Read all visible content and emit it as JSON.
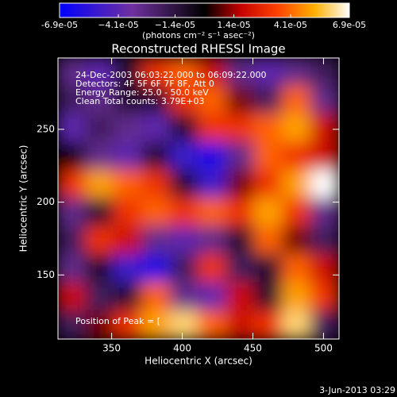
{
  "chart_data": {
    "type": "heatmap",
    "title": "Reconstructed RHESSI Image",
    "xlabel": "Heliocentric X (arcsec)",
    "ylabel": "Heliocentric Y (arcsec)",
    "xlim": [
      312,
      511
    ],
    "ylim": [
      106,
      299
    ],
    "xticks": [
      350,
      400,
      450,
      500
    ],
    "yticks": [
      150,
      200,
      250
    ],
    "colorbar_label": "(photons cm⁻² s⁻¹ asec⁻²)",
    "clim": [
      -6.9e-05,
      6.9e-05
    ],
    "cticks": [
      {
        "value": -6.9e-05,
        "label": "-6.9e-05"
      },
      {
        "value": -4.1e-05,
        "label": "−4.1e-05"
      },
      {
        "value": -1.4e-05,
        "label": "−1.4e-05"
      },
      {
        "value": 1.4e-05,
        "label": "1.4e-05"
      },
      {
        "value": 4.1e-05,
        "label": "4.1e-05"
      },
      {
        "value": 6.9e-05,
        "label": "6.9e-05"
      }
    ],
    "annotations": [
      "24-Dec-2003 06:03:22.000 to 06:09:22.000",
      "Detectors: 4F 5F 6F 7F 8F, Att 0",
      "Energy Range: 25.0 - 50.0 keV",
      "Clean     Total counts: 3.79E+03"
    ],
    "peak_label": "Position of Peak = [",
    "timestamp": "3-Jun-2013 03:29",
    "z": [
      [
        -3e-05,
        -4e-05,
        -1e-05,
        3e-05,
        4e-05,
        2e-05,
        -3e-05,
        -4e-05,
        -3e-05,
        -2e-05
      ],
      [
        -2e-05,
        -3e-05,
        -1e-05,
        -1e-05,
        3e-05,
        4e-05,
        1e-05,
        -2e-05,
        4e-05,
        -3e-05
      ],
      [
        -4e-05,
        -2e-05,
        -3e-05,
        -4e-05,
        -1e-05,
        3e-05,
        3e-05,
        4e-05,
        5e-05,
        2e-05
      ],
      [
        0,
        -3e-05,
        -4e-05,
        -1e-05,
        -5e-05,
        -6e-05,
        -3e-05,
        4e-05,
        3e-05,
        2e-05
      ],
      [
        3e-05,
        5e-05,
        4e-05,
        3e-05,
        -1e-05,
        -5e-05,
        1e-05,
        3e-05,
        5e-05,
        7e-05
      ],
      [
        -3e-05,
        -1e-05,
        3e-05,
        4e-05,
        3e-05,
        4e-05,
        3e-05,
        5e-05,
        3e-05,
        -3e-05
      ],
      [
        -2e-05,
        3e-05,
        2e-05,
        -3e-05,
        -4e-05,
        -3e-05,
        -1e-05,
        4e-05,
        1e-05,
        -2e-05
      ],
      [
        -3e-05,
        -1e-05,
        -5e-05,
        -6e-05,
        -2e-05,
        3e-05,
        -2e-05,
        -1e-05,
        4e-05,
        2e-05
      ],
      [
        2e-05,
        -2e-05,
        -1e-05,
        4e-05,
        -3e-05,
        -4e-05,
        2e-05,
        -1e-05,
        5e-05,
        3e-05
      ],
      [
        -2e-05,
        1e-05,
        3e-05,
        5e-05,
        6e-05,
        4e-05,
        2e-05,
        3e-05,
        6e-05,
        -2e-05
      ]
    ]
  }
}
